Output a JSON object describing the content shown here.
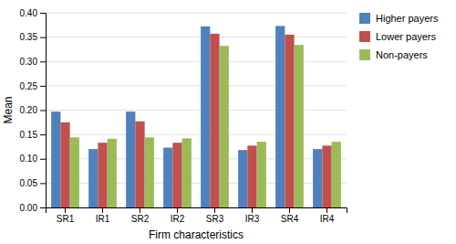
{
  "chart_data": {
    "type": "bar",
    "categories": [
      "SR1",
      "IR1",
      "SR2",
      "IR2",
      "SR3",
      "IR3",
      "SR4",
      "IR4"
    ],
    "series": [
      {
        "name": "Higher payers",
        "color": "#4F81BD",
        "values": [
          0.197,
          0.12,
          0.197,
          0.123,
          0.372,
          0.118,
          0.373,
          0.12
        ]
      },
      {
        "name": "Lower payers",
        "color": "#C0504D",
        "values": [
          0.175,
          0.133,
          0.177,
          0.133,
          0.357,
          0.127,
          0.355,
          0.127
        ]
      },
      {
        "name": "Non-payers",
        "color": "#9BBB59",
        "values": [
          0.144,
          0.141,
          0.144,
          0.142,
          0.332,
          0.135,
          0.334,
          0.135
        ]
      }
    ],
    "xlabel": "Firm characteristics",
    "ylabel": "Mean",
    "ylim": [
      0,
      0.4
    ],
    "yticks": [
      {
        "value": 0,
        "label": "0.00"
      },
      0.05,
      {
        "value": 0.1,
        "label": "0.10"
      },
      0.15,
      {
        "value": 0.2,
        "label": "0.20"
      },
      0.25,
      {
        "value": 0.3,
        "label": "0.30"
      },
      0.35,
      {
        "value": 0.4,
        "label": "0.40"
      }
    ],
    "grid": true,
    "legend": "right"
  }
}
